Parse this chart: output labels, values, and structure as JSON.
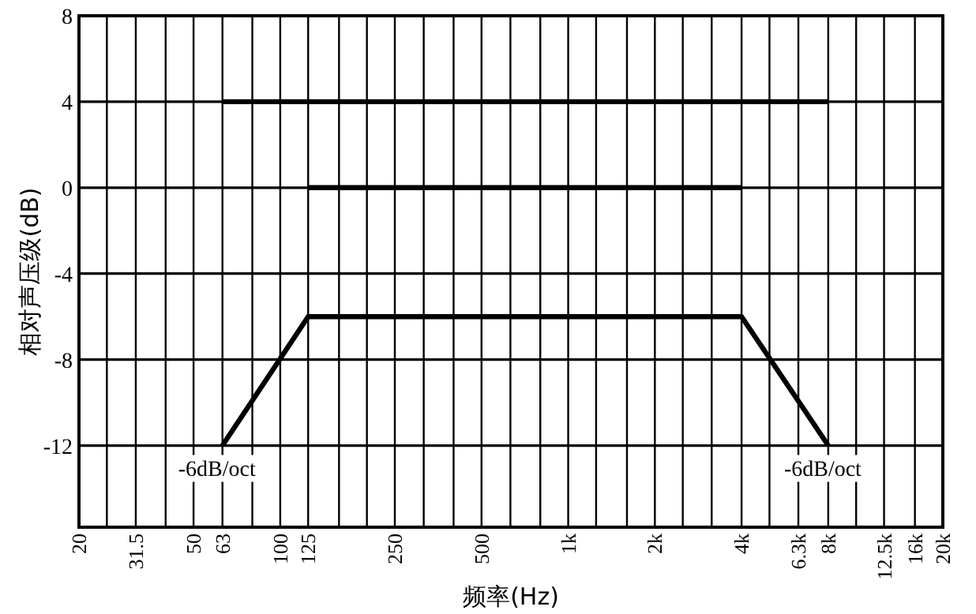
{
  "chart_data": {
    "type": "line",
    "xlabel": "频率(Hz)",
    "ylabel": "相对声压级(dB)",
    "log": "x",
    "grid": true,
    "marker": "none",
    "line_style": "solid",
    "xlim": [
      20,
      20000
    ],
    "ylim": [
      -15.8,
      8
    ],
    "xticks": [
      {
        "value": 20,
        "label": "20"
      },
      {
        "value": 25,
        "label": null
      },
      {
        "value": 31.5,
        "label": "31.5"
      },
      {
        "value": 40,
        "label": null
      },
      {
        "value": 50,
        "label": "50"
      },
      {
        "value": 63,
        "label": "63"
      },
      {
        "value": 80,
        "label": null
      },
      {
        "value": 100,
        "label": "100"
      },
      {
        "value": 125,
        "label": "125"
      },
      {
        "value": 160,
        "label": null
      },
      {
        "value": 200,
        "label": null
      },
      {
        "value": 250,
        "label": "250"
      },
      {
        "value": 315,
        "label": null
      },
      {
        "value": 400,
        "label": null
      },
      {
        "value": 500,
        "label": "500"
      },
      {
        "value": 630,
        "label": null
      },
      {
        "value": 800,
        "label": null
      },
      {
        "value": 1000,
        "label": "1k"
      },
      {
        "value": 1250,
        "label": null
      },
      {
        "value": 1600,
        "label": null
      },
      {
        "value": 2000,
        "label": "2k"
      },
      {
        "value": 2500,
        "label": null
      },
      {
        "value": 3150,
        "label": null
      },
      {
        "value": 4000,
        "label": "4k"
      },
      {
        "value": 5000,
        "label": null
      },
      {
        "value": 6300,
        "label": "6.3k"
      },
      {
        "value": 8000,
        "label": "8k"
      },
      {
        "value": 10000,
        "label": null
      },
      {
        "value": 12500,
        "label": "12.5k"
      },
      {
        "value": 16000,
        "label": "16k"
      },
      {
        "value": 20000,
        "label": "20k"
      }
    ],
    "yticks": [
      -12,
      -8,
      -4,
      0,
      4,
      8
    ],
    "series": [
      {
        "color": "#000000",
        "x": [
          63,
          8000
        ],
        "values": [
          4,
          4
        ]
      },
      {
        "color": "#000000",
        "x": [
          125,
          4000
        ],
        "values": [
          0,
          0
        ]
      },
      {
        "color": "#000000",
        "x": [
          63,
          125,
          4000,
          8000
        ],
        "values": [
          -12,
          -6,
          -6,
          -12
        ]
      }
    ],
    "annotations": [
      {
        "text": "-6dB/oct",
        "x": 63,
        "y": -12
      },
      {
        "text": "-6dB/oct",
        "x": 8000,
        "y": -12
      }
    ]
  }
}
